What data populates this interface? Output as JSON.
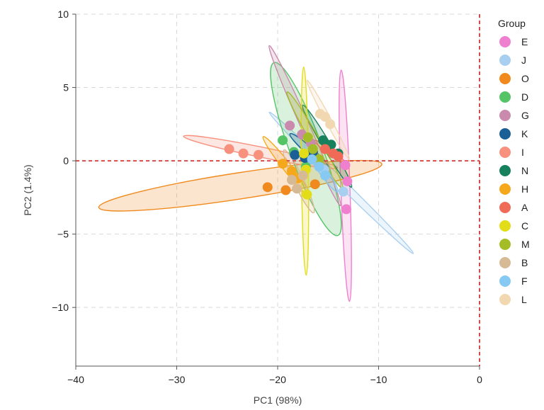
{
  "chart_data": {
    "type": "scatter",
    "xlabel": "PC1 (98%)",
    "ylabel": "PC2 (1.4%)",
    "xlim": [
      -40,
      0
    ],
    "ylim": [
      -14,
      10
    ],
    "xticks": [
      -40,
      -30,
      -20,
      -10,
      0
    ],
    "yticks": [
      10,
      5,
      0,
      -5,
      -10
    ],
    "grid": true,
    "reference_lines": {
      "h": 0,
      "v": 0,
      "color": "#d94b4b",
      "style": "dashed"
    },
    "legend": {
      "title": "Group",
      "position": "right"
    },
    "series": [
      {
        "name": "E",
        "color": "#ef7fcf",
        "points": [
          [
            -13.3,
            -0.3
          ],
          [
            -13.1,
            -1.4
          ],
          [
            -13.2,
            -3.3
          ]
        ],
        "ellipse": {
          "cx": -13.3,
          "cy": -1.7,
          "rx": 7.9,
          "ry": 0.45,
          "angle": -87
        }
      },
      {
        "name": "J",
        "color": "#a8cff0",
        "points": [
          [
            -15.4,
            -0.6
          ],
          [
            -13.5,
            -2.1
          ],
          [
            -16.0,
            0.1
          ]
        ],
        "ellipse": {
          "cx": -13.7,
          "cy": -1.5,
          "rx": 8.6,
          "ry": 0.3,
          "angle": -34
        }
      },
      {
        "name": "O",
        "color": "#f08a1e",
        "points": [
          [
            -21.0,
            -1.8
          ],
          [
            -19.2,
            -2.0
          ],
          [
            -16.3,
            -1.6
          ]
        ],
        "ellipse": {
          "cx": -23.7,
          "cy": -1.7,
          "rx": 14.1,
          "ry": 0.9,
          "angle": 6
        }
      },
      {
        "name": "D",
        "color": "#55c466",
        "points": [
          [
            -19.5,
            1.4
          ],
          [
            -17.2,
            -0.4
          ],
          [
            -18.4,
            0.6
          ]
        ],
        "ellipse": {
          "cx": -17.2,
          "cy": 0.8,
          "rx": 6.7,
          "ry": 1.5,
          "angle": -61
        }
      },
      {
        "name": "G",
        "color": "#c98aae",
        "points": [
          [
            -18.8,
            2.4
          ],
          [
            -17.6,
            1.8
          ],
          [
            -16.7,
            1.2
          ]
        ],
        "ellipse": {
          "cx": -17.3,
          "cy": 2.4,
          "rx": 6.5,
          "ry": 0.4,
          "angle": -57
        }
      },
      {
        "name": "K",
        "color": "#1a5f96",
        "points": [
          [
            -18.3,
            0.4
          ],
          [
            -17.3,
            0.2
          ],
          [
            -16.5,
            0.6
          ]
        ],
        "ellipse": {
          "cx": -16.9,
          "cy": 0.7,
          "rx": 2.2,
          "ry": 0.3,
          "angle": -31
        }
      },
      {
        "name": "I",
        "color": "#f7917e",
        "points": [
          [
            -24.8,
            0.8
          ],
          [
            -23.4,
            0.5
          ],
          [
            -21.9,
            0.4
          ]
        ],
        "ellipse": {
          "cx": -21.7,
          "cy": 0.6,
          "rx": 7.7,
          "ry": 0.35,
          "angle": -8
        }
      },
      {
        "name": "N",
        "color": "#17805c",
        "points": [
          [
            -15.5,
            1.4
          ],
          [
            -14.7,
            1.1
          ],
          [
            -14.0,
            0.5
          ]
        ],
        "ellipse": {
          "cx": -15.1,
          "cy": 1.0,
          "rx": 3.7,
          "ry": 0.35,
          "angle": -49
        }
      },
      {
        "name": "H",
        "color": "#f5a81c",
        "points": [
          [
            -19.5,
            -0.2
          ],
          [
            -18.6,
            -0.7
          ],
          [
            -18.0,
            -1.2
          ]
        ],
        "ellipse": {
          "cx": -19.1,
          "cy": -0.4,
          "rx": 3.1,
          "ry": 0.35,
          "angle": -41
        }
      },
      {
        "name": "A",
        "color": "#f06a58",
        "points": [
          [
            -15.3,
            0.8
          ],
          [
            -14.5,
            0.5
          ],
          [
            -14.0,
            0.3
          ]
        ],
        "ellipse": {
          "cx": -14.8,
          "cy": 0.6,
          "rx": 1.7,
          "ry": 0.2,
          "angle": -27
        }
      },
      {
        "name": "C",
        "color": "#e2dc19",
        "points": [
          [
            -17.4,
            0.5
          ],
          [
            -17.2,
            -0.6
          ],
          [
            -17.1,
            -2.3
          ]
        ],
        "ellipse": {
          "cx": -17.3,
          "cy": -0.7,
          "rx": 7.1,
          "ry": 0.35,
          "angle": -89
        }
      },
      {
        "name": "M",
        "color": "#a4bd27",
        "points": [
          [
            -17.0,
            1.6
          ],
          [
            -16.5,
            0.8
          ],
          [
            -15.9,
            0.1
          ]
        ],
        "ellipse": {
          "cx": -16.3,
          "cy": 1.4,
          "rx": 4.3,
          "ry": 0.4,
          "angle": -50
        }
      },
      {
        "name": "B",
        "color": "#d6ba95",
        "points": [
          [
            -18.6,
            -1.3
          ],
          [
            -18.1,
            -1.9
          ],
          [
            -17.5,
            -1.0
          ]
        ],
        "ellipse": {
          "cx": -17.9,
          "cy": -1.4,
          "rx": 2.6,
          "ry": 0.45,
          "angle": -55
        }
      },
      {
        "name": "F",
        "color": "#86c9f2",
        "points": [
          [
            -16.6,
            0.1
          ],
          [
            -15.9,
            -0.4
          ],
          [
            -15.3,
            -1.0
          ]
        ],
        "ellipse": {
          "cx": -15.7,
          "cy": -0.5,
          "rx": 2.3,
          "ry": 0.35,
          "angle": -44
        }
      },
      {
        "name": "L",
        "color": "#f2d8b0",
        "points": [
          [
            -15.8,
            3.2
          ],
          [
            -15.3,
            3.0
          ],
          [
            -14.8,
            2.5
          ]
        ],
        "ellipse": {
          "cx": -15.0,
          "cy": 2.8,
          "rx": 3.4,
          "ry": 0.25,
          "angle": -52
        }
      }
    ]
  }
}
